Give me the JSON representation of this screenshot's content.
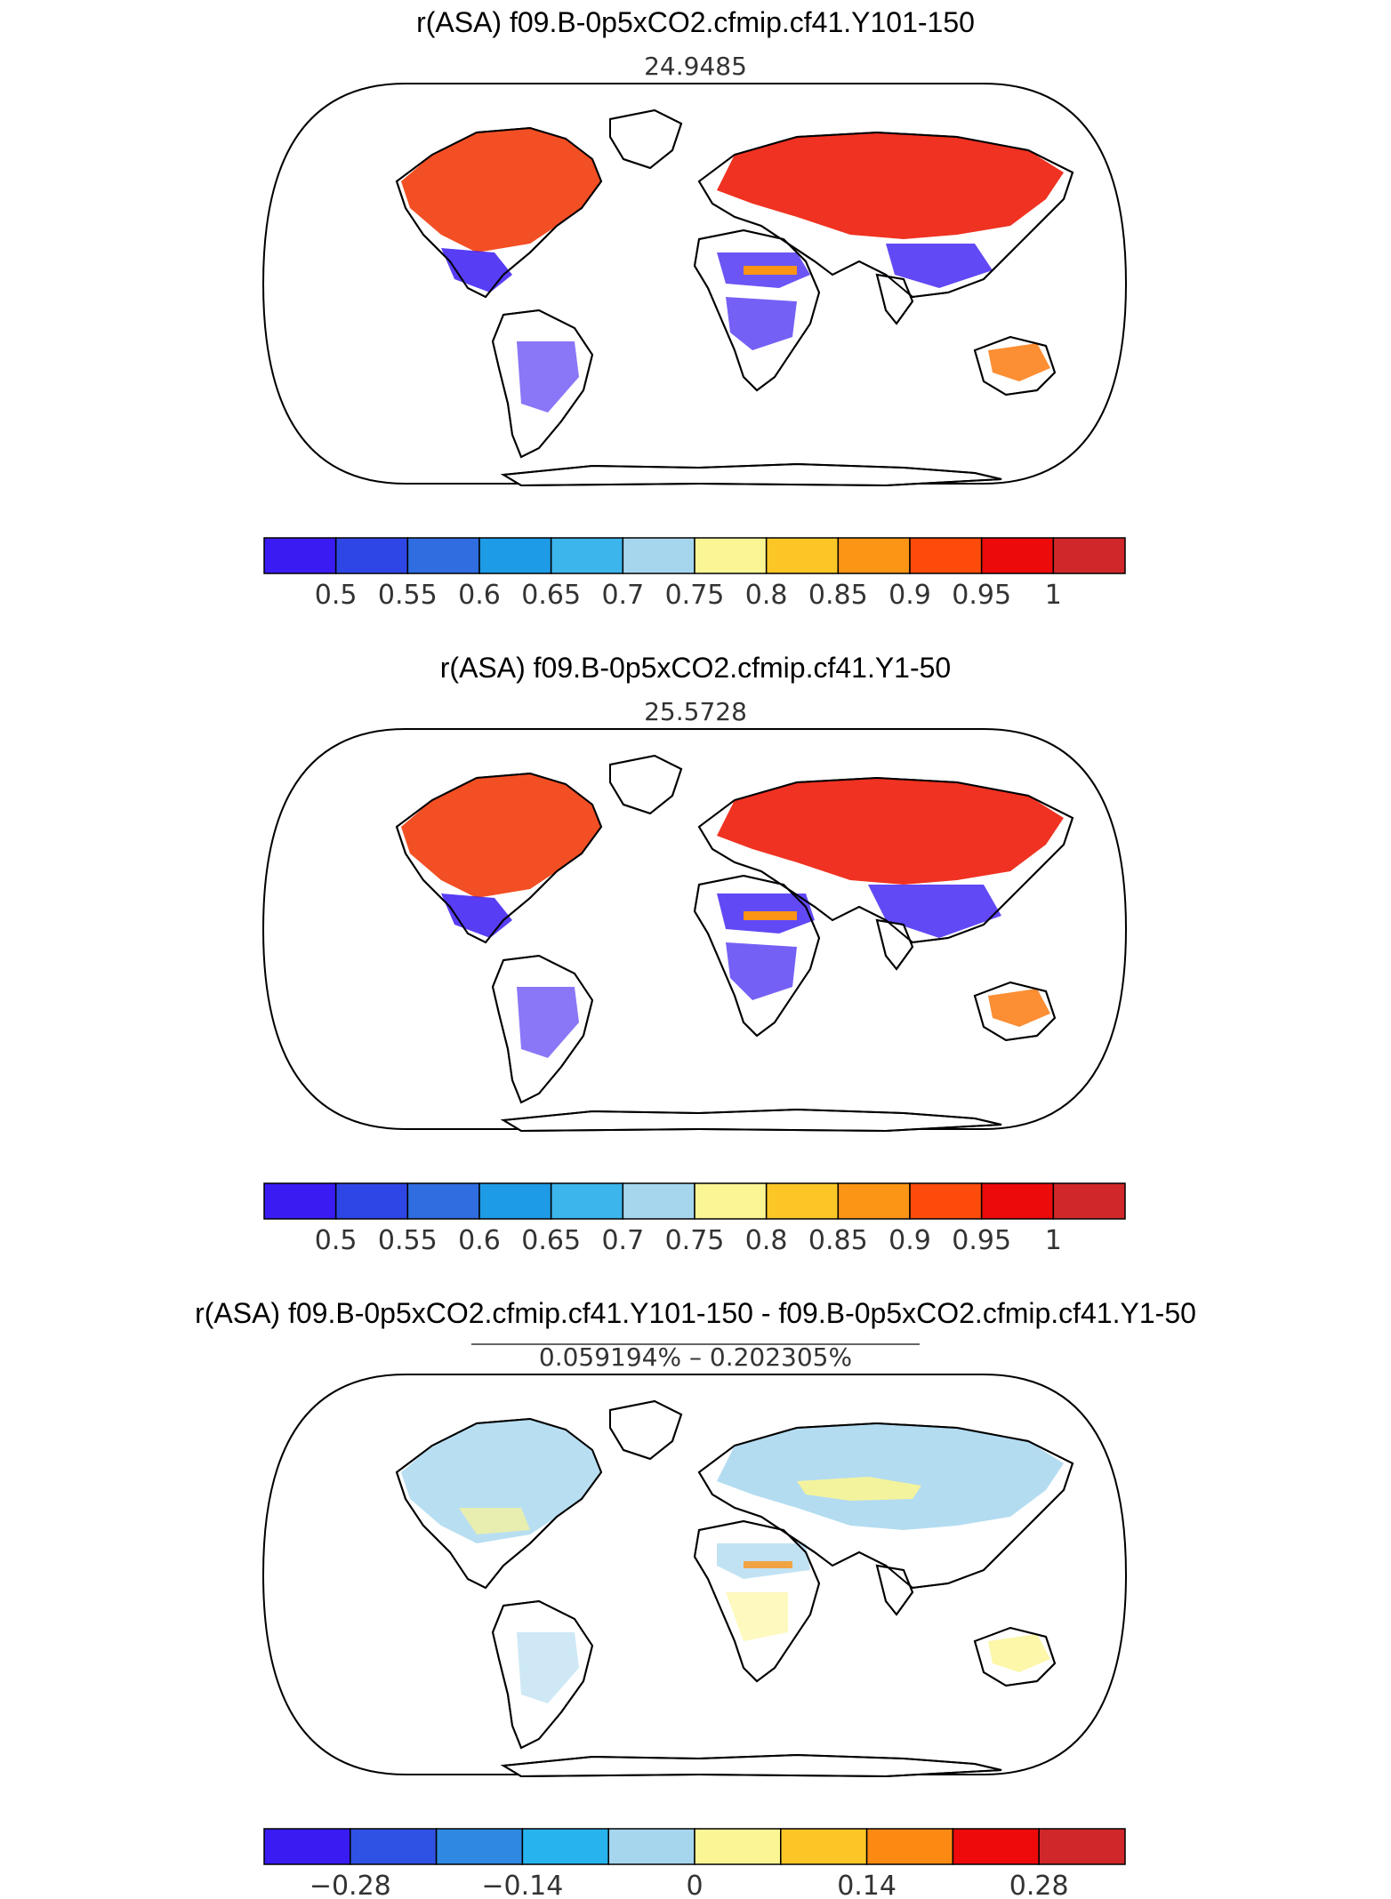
{
  "panels": [
    {
      "title": "r(ASA) f09.B-0p5xCO2.cfmip.cf41.Y101-150",
      "subtitle": "24.9485",
      "colorbar": {
        "colors": [
          "#3a1cf2",
          "#2f46e6",
          "#2f6de0",
          "#1e9be6",
          "#3cb4ec",
          "#a6d6ee",
          "#fbf594",
          "#fcc726",
          "#fc9416",
          "#fc4b0a",
          "#ec0a0a",
          "#d0282a"
        ],
        "labels": [
          "0.5",
          "0.55",
          "0.6",
          "0.65",
          "0.7",
          "0.75",
          "0.8",
          "0.85",
          "0.9",
          "0.95",
          "1"
        ]
      }
    },
    {
      "title": "r(ASA) f09.B-0p5xCO2.cfmip.cf41.Y1-50",
      "subtitle": "25.5728",
      "colorbar": {
        "colors": [
          "#3a1cf2",
          "#2f46e6",
          "#2f6de0",
          "#1e9be6",
          "#3cb4ec",
          "#a6d6ee",
          "#fbf594",
          "#fcc726",
          "#fc9416",
          "#fc4b0a",
          "#ec0a0a",
          "#d0282a"
        ],
        "labels": [
          "0.5",
          "0.55",
          "0.6",
          "0.65",
          "0.7",
          "0.75",
          "0.8",
          "0.85",
          "0.9",
          "0.95",
          "1"
        ]
      }
    },
    {
      "title": "r(ASA) f09.B-0p5xCO2.cfmip.cf41.Y101-150 - f09.B-0p5xCO2.cfmip.cf41.Y1-50",
      "subtitle": "0.059194% – 0.202305%",
      "colorbar": {
        "colors": [
          "#3a1cf2",
          "#2f52e4",
          "#2f88e2",
          "#27b4ee",
          "#a6d6ee",
          "#fbf594",
          "#fcc726",
          "#fc8a12",
          "#ee0a0a",
          "#d0282a"
        ],
        "labels": [
          "−0.28",
          "−0.14",
          "0",
          "0.14",
          "0.28"
        ]
      }
    }
  ]
}
